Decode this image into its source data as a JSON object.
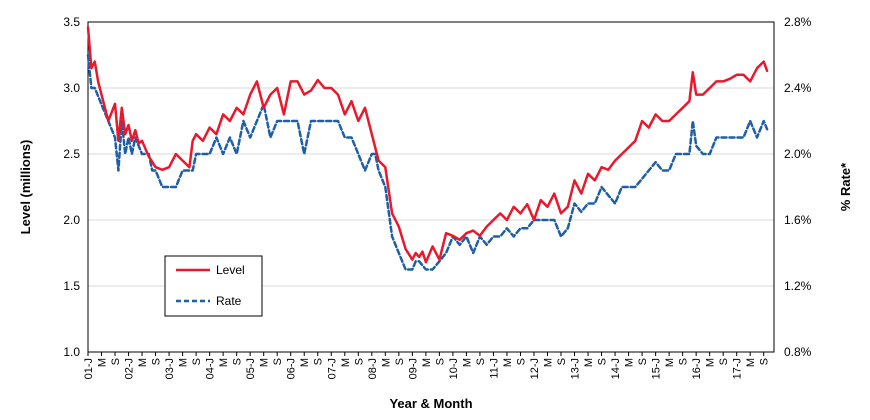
{
  "chart_data": {
    "type": "line",
    "xlabel": "Year & Month",
    "ylabel": "Level (millions)",
    "y2label": "% Rate*",
    "ylim": [
      1.0,
      3.5
    ],
    "y2lim": [
      0.8,
      2.8
    ],
    "grid": true,
    "legend_position": "lower-left",
    "y_ticks": [
      "1.0",
      "1.5",
      "2.0",
      "2.5",
      "3.0",
      "3.5"
    ],
    "y2_ticks": [
      "0.8%",
      "1.2%",
      "1.6%",
      "2.0%",
      "2.4%",
      "2.8%"
    ],
    "x_tick_labels": [
      "01-J",
      "M",
      "S",
      "02-J",
      "M",
      "S",
      "03-J",
      "M",
      "S",
      "04-J",
      "M",
      "S",
      "05-J",
      "M",
      "S",
      "06-J",
      "M",
      "S",
      "07-J",
      "M",
      "S",
      "08-J",
      "M",
      "S",
      "09-J",
      "M",
      "S",
      "10-J",
      "M",
      "S",
      "11-J",
      "M",
      "S",
      "12-J",
      "M",
      "S",
      "13-J",
      "M",
      "S",
      "14-J",
      "M",
      "S",
      "15-J",
      "M",
      "S",
      "16-J",
      "M",
      "S",
      "17-J",
      "M",
      "S"
    ],
    "series": [
      {
        "name": "Level",
        "axis": "left",
        "color": "#e8192c",
        "style": "solid",
        "x": [
          2001.0,
          2001.083,
          2001.167,
          2001.25,
          2001.333,
          2001.5,
          2001.667,
          2001.75,
          2001.833,
          2001.917,
          2002.0,
          2002.083,
          2002.167,
          2002.25,
          2002.333,
          2002.5,
          2002.667,
          2002.833,
          2003.0,
          2003.167,
          2003.333,
          2003.5,
          2003.583,
          2003.667,
          2003.833,
          2004.0,
          2004.167,
          2004.333,
          2004.5,
          2004.667,
          2004.833,
          2005.0,
          2005.167,
          2005.333,
          2005.5,
          2005.667,
          2005.833,
          2006.0,
          2006.167,
          2006.333,
          2006.5,
          2006.667,
          2006.833,
          2007.0,
          2007.167,
          2007.333,
          2007.5,
          2007.667,
          2007.833,
          2008.0,
          2008.083,
          2008.167,
          2008.333,
          2008.5,
          2008.667,
          2008.833,
          2009.0,
          2009.083,
          2009.167,
          2009.25,
          2009.333,
          2009.5,
          2009.667,
          2009.833,
          2010.0,
          2010.167,
          2010.333,
          2010.5,
          2010.667,
          2010.833,
          2011.0,
          2011.167,
          2011.333,
          2011.5,
          2011.667,
          2011.833,
          2012.0,
          2012.167,
          2012.333,
          2012.5,
          2012.667,
          2012.833,
          2013.0,
          2013.167,
          2013.333,
          2013.5,
          2013.667,
          2013.833,
          2014.0,
          2014.167,
          2014.333,
          2014.5,
          2014.667,
          2014.833,
          2015.0,
          2015.167,
          2015.333,
          2015.5,
          2015.667,
          2015.833,
          2015.917,
          2016.0,
          2016.167,
          2016.333,
          2016.5,
          2016.667,
          2016.833,
          2017.0,
          2017.167,
          2017.333,
          2017.5,
          2017.667,
          2017.75
        ],
        "values": [
          3.46,
          3.15,
          3.2,
          3.05,
          2.95,
          2.75,
          2.88,
          2.6,
          2.85,
          2.65,
          2.72,
          2.6,
          2.68,
          2.58,
          2.6,
          2.48,
          2.4,
          2.38,
          2.4,
          2.5,
          2.45,
          2.4,
          2.6,
          2.65,
          2.6,
          2.7,
          2.65,
          2.8,
          2.75,
          2.85,
          2.8,
          2.95,
          3.05,
          2.85,
          2.95,
          3.0,
          2.8,
          3.05,
          3.05,
          2.95,
          2.98,
          3.06,
          3.0,
          3.0,
          2.95,
          2.8,
          2.9,
          2.75,
          2.85,
          2.65,
          2.55,
          2.45,
          2.4,
          2.05,
          1.95,
          1.78,
          1.7,
          1.75,
          1.72,
          1.76,
          1.68,
          1.8,
          1.7,
          1.9,
          1.88,
          1.85,
          1.9,
          1.92,
          1.88,
          1.95,
          2.0,
          2.05,
          2.0,
          2.1,
          2.05,
          2.12,
          2.0,
          2.15,
          2.1,
          2.2,
          2.05,
          2.1,
          2.3,
          2.2,
          2.35,
          2.3,
          2.4,
          2.38,
          2.45,
          2.5,
          2.55,
          2.6,
          2.75,
          2.7,
          2.8,
          2.75,
          2.75,
          2.8,
          2.85,
          2.9,
          3.12,
          2.95,
          2.95,
          3.0,
          3.05,
          3.05,
          3.07,
          3.1,
          3.1,
          3.05,
          3.15,
          3.2,
          3.13
        ]
      },
      {
        "name": "Rate",
        "axis": "right",
        "color": "#1f5fa8",
        "style": "dashed",
        "x": [
          2001.0,
          2001.083,
          2001.167,
          2001.333,
          2001.5,
          2001.667,
          2001.75,
          2001.833,
          2001.917,
          2002.0,
          2002.083,
          2002.167,
          2002.333,
          2002.5,
          2002.583,
          2002.667,
          2002.833,
          2003.0,
          2003.167,
          2003.333,
          2003.5,
          2003.583,
          2003.667,
          2003.833,
          2004.0,
          2004.167,
          2004.333,
          2004.5,
          2004.667,
          2004.833,
          2005.0,
          2005.167,
          2005.333,
          2005.5,
          2005.667,
          2005.833,
          2006.0,
          2006.167,
          2006.333,
          2006.5,
          2006.667,
          2006.833,
          2007.0,
          2007.167,
          2007.333,
          2007.5,
          2007.667,
          2007.833,
          2008.0,
          2008.083,
          2008.167,
          2008.333,
          2008.5,
          2008.667,
          2008.833,
          2009.0,
          2009.083,
          2009.167,
          2009.333,
          2009.5,
          2009.667,
          2009.833,
          2010.0,
          2010.167,
          2010.333,
          2010.5,
          2010.667,
          2010.833,
          2011.0,
          2011.167,
          2011.333,
          2011.5,
          2011.667,
          2011.833,
          2012.0,
          2012.167,
          2012.333,
          2012.5,
          2012.667,
          2012.833,
          2013.0,
          2013.167,
          2013.333,
          2013.5,
          2013.667,
          2013.833,
          2014.0,
          2014.167,
          2014.333,
          2014.5,
          2014.667,
          2014.833,
          2015.0,
          2015.167,
          2015.333,
          2015.5,
          2015.667,
          2015.833,
          2015.917,
          2016.0,
          2016.167,
          2016.333,
          2016.5,
          2016.667,
          2016.833,
          2017.0,
          2017.167,
          2017.333,
          2017.5,
          2017.667,
          2017.75
        ],
        "values": [
          2.6,
          2.4,
          2.4,
          2.3,
          2.2,
          2.1,
          1.9,
          2.2,
          2.0,
          2.1,
          2.0,
          2.1,
          2.0,
          2.0,
          1.9,
          1.9,
          1.8,
          1.8,
          1.8,
          1.9,
          1.9,
          1.9,
          2.0,
          2.0,
          2.0,
          2.1,
          2.0,
          2.1,
          2.0,
          2.2,
          2.1,
          2.2,
          2.3,
          2.1,
          2.2,
          2.2,
          2.2,
          2.2,
          2.0,
          2.2,
          2.2,
          2.2,
          2.2,
          2.2,
          2.1,
          2.1,
          2.0,
          1.9,
          2.0,
          2.0,
          1.9,
          1.8,
          1.5,
          1.4,
          1.3,
          1.3,
          1.35,
          1.35,
          1.3,
          1.3,
          1.35,
          1.4,
          1.5,
          1.45,
          1.5,
          1.4,
          1.5,
          1.45,
          1.5,
          1.5,
          1.55,
          1.5,
          1.55,
          1.55,
          1.6,
          1.6,
          1.6,
          1.6,
          1.5,
          1.55,
          1.7,
          1.65,
          1.7,
          1.7,
          1.8,
          1.75,
          1.7,
          1.8,
          1.8,
          1.8,
          1.85,
          1.9,
          1.95,
          1.9,
          1.9,
          2.0,
          2.0,
          2.0,
          2.2,
          2.05,
          2.0,
          2.0,
          2.1,
          2.1,
          2.1,
          2.1,
          2.1,
          2.2,
          2.1,
          2.2,
          2.15
        ]
      }
    ]
  }
}
